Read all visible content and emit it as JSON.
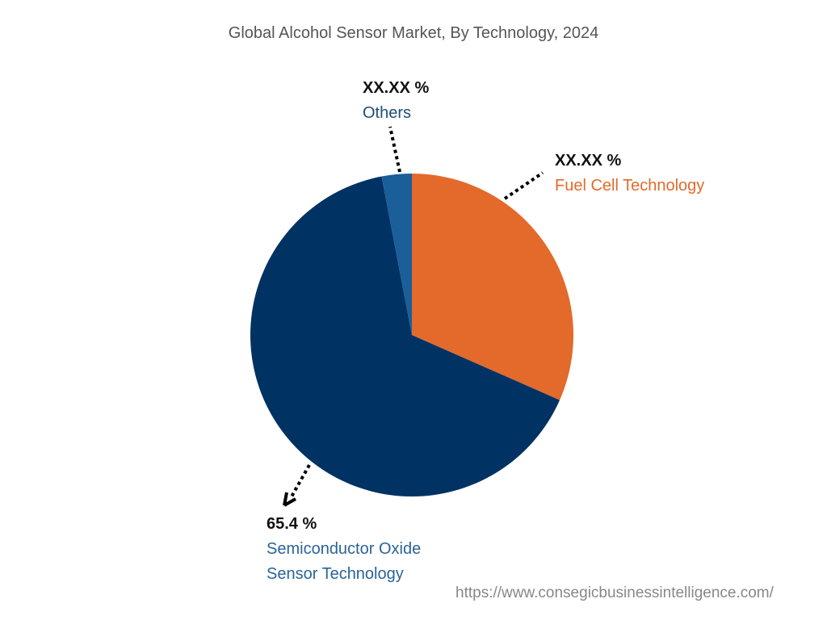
{
  "chart_data": {
    "type": "pie",
    "title": "Global Alcohol Sensor Market, By Technology, 2024",
    "start": "12 o'clock, clockwise",
    "slices": [
      {
        "name": "Fuel Cell Technology",
        "label": "XX.XX %",
        "value": 31.6,
        "color": "#E36A2A"
      },
      {
        "name": "Semiconductor Oxide Sensor Technology",
        "name_line1": "Semiconductor Oxide",
        "name_line2": "Sensor Technology",
        "label": "65.4 %",
        "value": 65.4,
        "color": "#003263"
      },
      {
        "name": "Others",
        "label": "XX.XX %",
        "value": 3.0,
        "color": "#1A5E9A"
      }
    ],
    "label_colors": {
      "Fuel Cell Technology": "#E36A2A",
      "Others": "#1F4E79",
      "Semiconductor Oxide Sensor Technology": "#2A6496"
    }
  },
  "source": "https://www.consegicbusinessintelligence.com/"
}
